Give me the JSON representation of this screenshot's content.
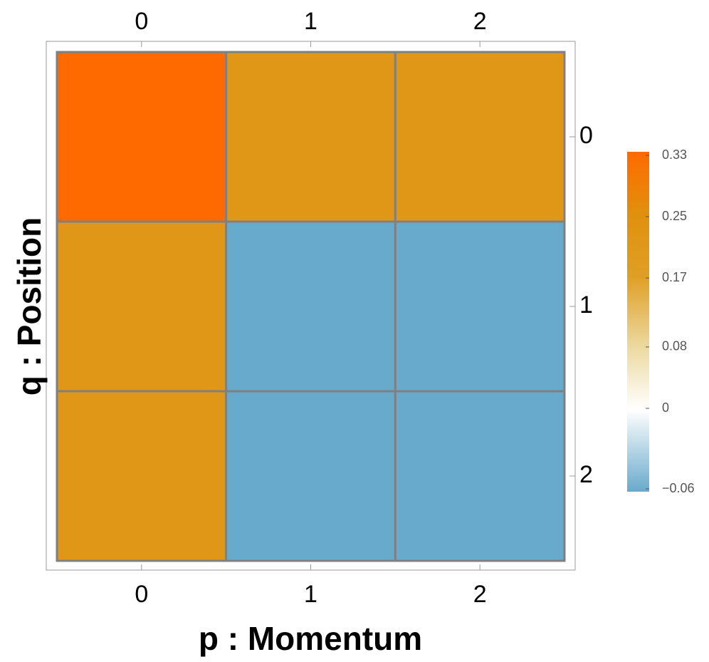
{
  "chart_data": {
    "type": "heatmap",
    "xlabel": "p : Momentum",
    "ylabel": "q : Position",
    "x_categories": [
      0,
      1,
      2
    ],
    "y_categories": [
      0,
      1,
      2
    ],
    "values": [
      [
        0.33,
        0.22,
        0.22
      ],
      [
        0.22,
        -0.06,
        -0.06
      ],
      [
        0.22,
        -0.06,
        -0.06
      ]
    ],
    "cell_border_color": "#808080",
    "colorbar": {
      "lim": [
        -0.06,
        0.33
      ],
      "ticks": [
        {
          "value": -0.06,
          "label": "−0.06"
        },
        0,
        0.08,
        0.17,
        0.25,
        0.33
      ],
      "colors": [
        "#68aacb",
        "#ffffff",
        "#ecd9a0",
        "#df9f25",
        "#e0900e",
        "#ff6a00"
      ]
    }
  }
}
